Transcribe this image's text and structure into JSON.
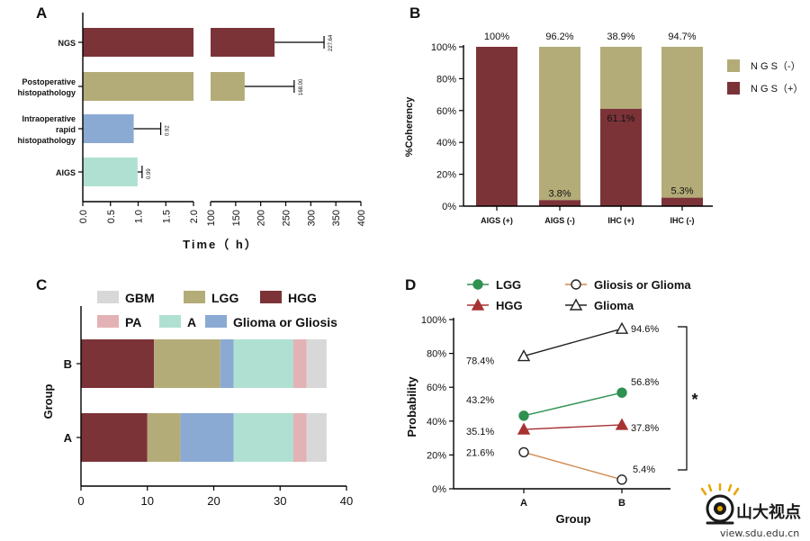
{
  "colors": {
    "ngs_pos": "#7b3338",
    "ngs_neg": "#b4ac78",
    "aigs": "#b0e0d2",
    "rapid": "#8aaad3",
    "post": "#b4ac78",
    "ngs": "#7b3338",
    "lgg_line": "#2e9150",
    "hgg_line": "#a83232",
    "gliosis_line": "#d08a50",
    "glioma_line": "#222222",
    "gbm": "#d8d8d8",
    "lgg": "#b4ac78",
    "hgg": "#7b3338",
    "pa": "#e3b2b5",
    "a": "#b0e0d2",
    "glioma_or_gliosis": "#8aaad3"
  },
  "chart_data": [
    {
      "panel": "A",
      "type": "bar",
      "orientation": "horizontal",
      "xlabel": "Time（ h）",
      "categories": [
        "NGS",
        "Postoperative histopathology",
        "Intraoperative rapid histopathology",
        "AIGS"
      ],
      "category_lines": [
        [
          "NGS"
        ],
        [
          "Postoperative",
          "histopathology"
        ],
        [
          "Intraoperative",
          "rapid",
          "histopathology"
        ],
        [
          "AIGS"
        ]
      ],
      "values": [
        227.64,
        168.0,
        0.92,
        0.99
      ],
      "value_labels": [
        "227.64",
        "168.00",
        "0.92",
        "0.99"
      ],
      "axis_break": {
        "left_range": [
          0,
          2
        ],
        "right_range": [
          100,
          400
        ]
      },
      "left_ticks": [
        "0.0",
        "0.5",
        "1.0",
        "1.5",
        "2.0"
      ],
      "right_ticks": [
        "100",
        "150",
        "200",
        "250",
        "300",
        "350",
        "400"
      ]
    },
    {
      "panel": "B",
      "type": "bar",
      "stacked": true,
      "ylabel": "%Coherency",
      "categories": [
        "AIGS (+)",
        "AIGS (-)",
        "IHC (+)",
        "IHC (-)"
      ],
      "series": [
        {
          "name": "NGS（+）",
          "values": [
            100,
            3.8,
            61.1,
            5.3
          ]
        },
        {
          "name": "NGS（-）",
          "values": [
            0,
            96.2,
            38.9,
            94.7
          ]
        }
      ],
      "top_labels": [
        "100%",
        "96.2%",
        "38.9%",
        "94.7%"
      ],
      "inner_labels": [
        "",
        "3.8%",
        "61.1%",
        "5.3%"
      ],
      "legend": [
        "N G S（-）",
        "N G S（+）"
      ],
      "y_ticks": [
        "0%",
        "20%",
        "40%",
        "60%",
        "80%",
        "100%"
      ],
      "ylim": [
        0,
        100
      ]
    },
    {
      "panel": "C",
      "type": "bar",
      "stacked": true,
      "orientation": "horizontal",
      "ylabel": "Group",
      "categories": [
        "B",
        "A"
      ],
      "series": [
        {
          "name": "HGG",
          "values": [
            11,
            10
          ]
        },
        {
          "name": "LGG",
          "values": [
            10,
            5
          ]
        },
        {
          "name": "Glioma or Gliosis",
          "values": [
            2,
            8
          ]
        },
        {
          "name": "A",
          "values": [
            9,
            9
          ]
        },
        {
          "name": "PA",
          "values": [
            2,
            2
          ]
        },
        {
          "name": "GBM",
          "values": [
            3,
            3
          ]
        }
      ],
      "legend_row1": [
        "GBM",
        "LGG",
        "HGG"
      ],
      "legend_row2": [
        "PA",
        "A",
        "Glioma or Gliosis"
      ],
      "x_ticks": [
        "0",
        "10",
        "20",
        "30",
        "40"
      ],
      "xlim": [
        0,
        40
      ]
    },
    {
      "panel": "D",
      "type": "line",
      "xlabel": "Group",
      "ylabel": "Probability",
      "x": [
        "A",
        "B"
      ],
      "series": [
        {
          "name": "Glioma",
          "values": [
            78.4,
            94.6
          ],
          "labels": [
            "78.4%",
            "94.6%"
          ]
        },
        {
          "name": "LGG",
          "values": [
            43.2,
            56.8
          ],
          "labels": [
            "43.2%",
            "56.8%"
          ]
        },
        {
          "name": "HGG",
          "values": [
            35.1,
            37.8
          ],
          "labels": [
            "35.1%",
            "37.8%"
          ]
        },
        {
          "name": "Gliosis or Glioma",
          "values": [
            21.6,
            5.4
          ],
          "labels": [
            "21.6%",
            "5.4%"
          ]
        }
      ],
      "legend": [
        "LGG",
        "Gliosis or Glioma",
        "HGG",
        "Glioma"
      ],
      "y_ticks": [
        "0%",
        "20%",
        "40%",
        "60%",
        "80%",
        "100%"
      ],
      "ylim": [
        0,
        100
      ],
      "significance": "*"
    }
  ],
  "watermark": {
    "text": "山大视点",
    "url": "view.sdu.edu.cn"
  }
}
